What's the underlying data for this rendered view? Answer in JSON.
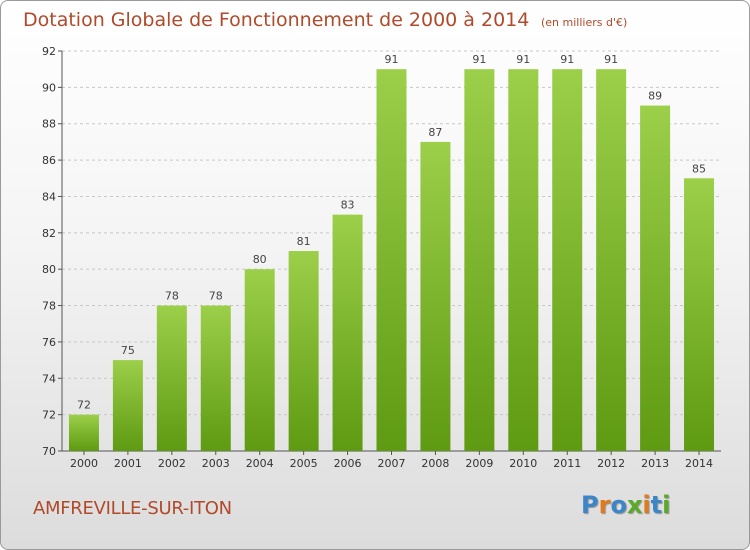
{
  "chart_data": {
    "type": "bar",
    "title": "Dotation Globale de Fonctionnement de 2000 à 2014",
    "unit": "(en milliers d'€)",
    "categories": [
      "2000",
      "2001",
      "2002",
      "2003",
      "2004",
      "2005",
      "2006",
      "2007",
      "2008",
      "2009",
      "2010",
      "2011",
      "2012",
      "2013",
      "2014"
    ],
    "values": [
      72,
      75,
      78,
      78,
      80,
      81,
      83,
      91,
      87,
      91,
      91,
      91,
      91,
      89,
      85
    ],
    "ylim": [
      70,
      92
    ],
    "yticks": [
      70,
      72,
      74,
      76,
      78,
      80,
      82,
      84,
      86,
      88,
      90,
      92
    ],
    "grid": true,
    "colors": {
      "bar_top": "#9ccf4a",
      "bar_bottom": "#5e9a12",
      "title": "#b04a2a"
    }
  },
  "footer": {
    "commune": "AMFREVILLE-SUR-ITON",
    "logo_letters": [
      "P",
      "r",
      "o",
      "x",
      "i",
      "t",
      "i"
    ],
    "logo_colors": [
      "#3a86c8",
      "#e07a1c",
      "#3a86c8",
      "#5aaa2a",
      "#e07a1c",
      "#3a86c8",
      "#5aaa2a"
    ]
  }
}
